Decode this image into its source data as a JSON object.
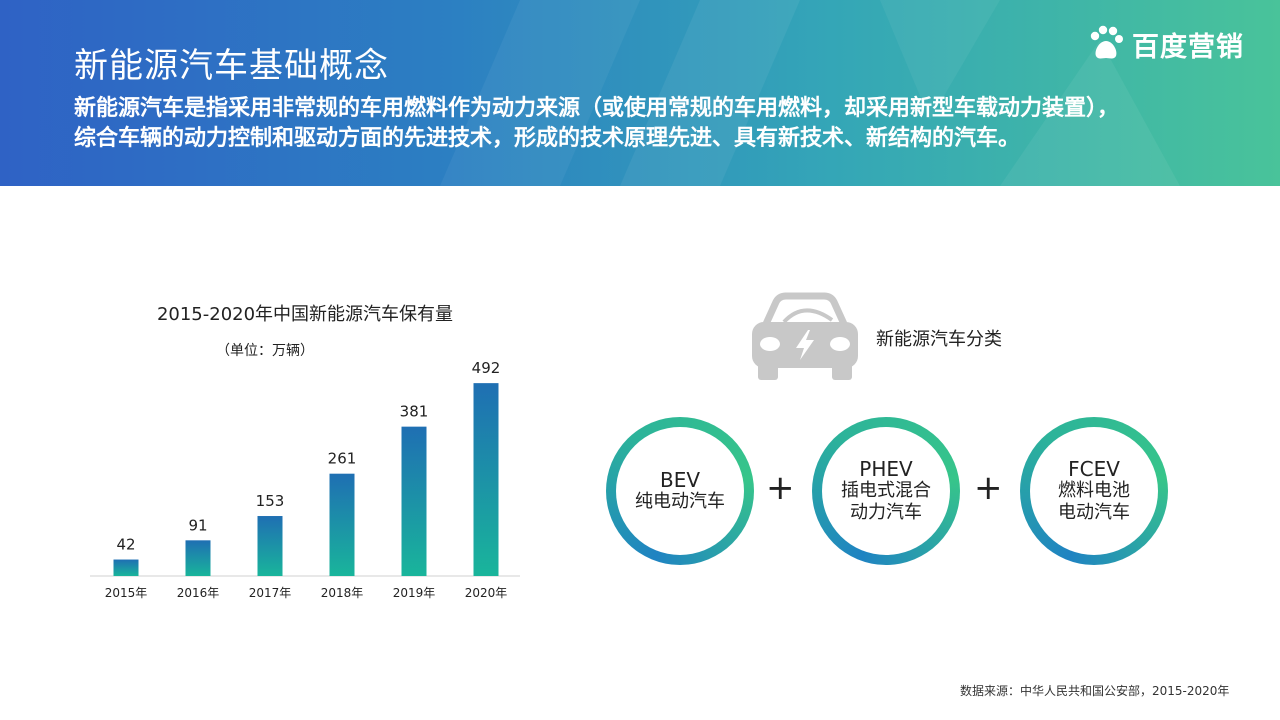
{
  "header": {
    "title": "新能源汽车基础概念",
    "intro_lines": [
      "新能源汽车是指采用非常规的车用燃料作为动力来源（或使用常规的车用燃料，却采用新型车载动力装置），",
      "综合车辆的动力控制和驱动方面的先进技术，形成的技术原理先进、具有新技术、新结构的汽车。"
    ],
    "logo_text": "百度营销",
    "gradient_colors": [
      "#2f62c5",
      "#49c39a"
    ]
  },
  "chart_data": {
    "type": "bar",
    "title": "2015-2020年中国新能源汽车保有量",
    "subtitle": "（单位：万辆）",
    "categories": [
      "2015年",
      "2016年",
      "2017年",
      "2018年",
      "2019年",
      "2020年"
    ],
    "values": [
      42,
      91,
      153,
      261,
      381,
      492
    ],
    "ylim": [
      0,
      500
    ],
    "data_labels": true,
    "grid": false,
    "legend": "none",
    "bar_gradient": [
      "#1f6fb3",
      "#19b59b"
    ]
  },
  "classification": {
    "label": "新能源汽车分类",
    "icon": "electric-car-icon",
    "items": [
      {
        "abbr": "BEV",
        "name_lines": [
          "纯电动汽车"
        ]
      },
      {
        "abbr": "PHEV",
        "name_lines": [
          "插电式混合",
          "动力汽车"
        ]
      },
      {
        "abbr": "FCEV",
        "name_lines": [
          "燃料电池",
          "电动汽车"
        ]
      }
    ],
    "separator": "+"
  },
  "footer": {
    "source": "数据来源：中华人民共和国公安部，2015-2020年"
  }
}
